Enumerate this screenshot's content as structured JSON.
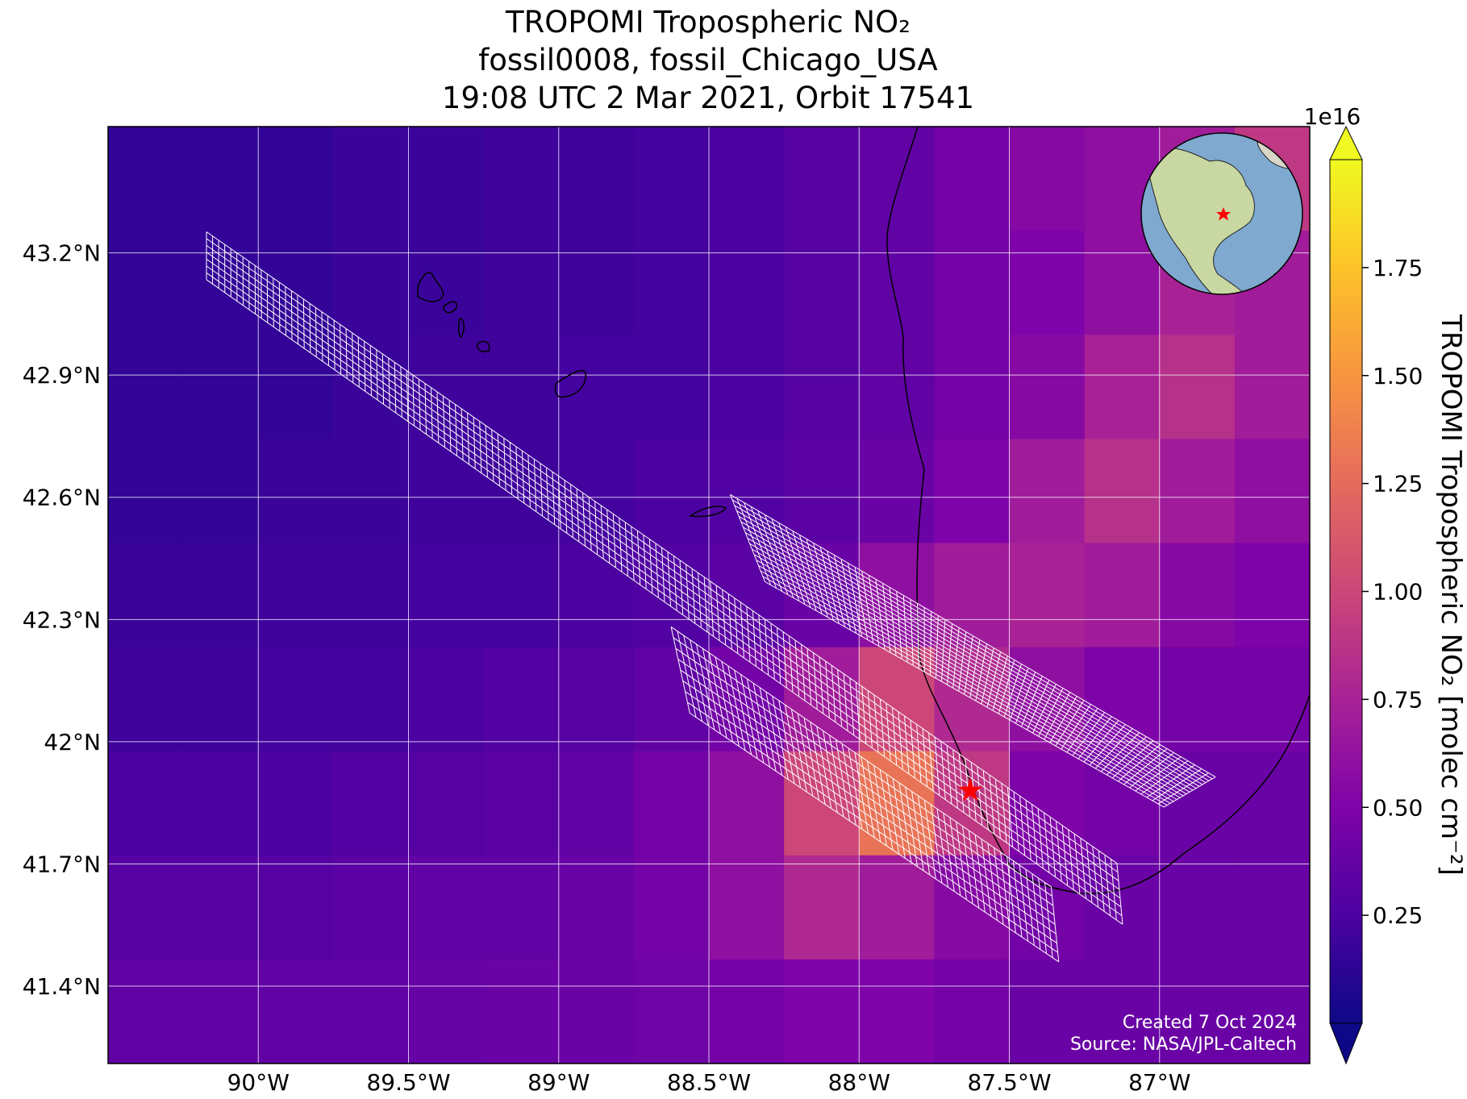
{
  "chart_data": {
    "type": "map_raster",
    "title": [
      "TROPOMI Tropospheric NO₂",
      "fossil0008, fossil_Chicago_USA",
      "19:08 UTC 2 Mar 2021, Orbit 17541"
    ],
    "xlim": [
      -90.5,
      -86.5
    ],
    "ylim": [
      41.21,
      43.51
    ],
    "xticks": [
      {
        "value": -90,
        "label": "90°W"
      },
      {
        "value": -89.5,
        "label": "89.5°W"
      },
      {
        "value": -89,
        "label": "89°W"
      },
      {
        "value": -88.5,
        "label": "88.5°W"
      },
      {
        "value": -88,
        "label": "88°W"
      },
      {
        "value": -87.5,
        "label": "87.5°W"
      },
      {
        "value": -87,
        "label": "87°W"
      }
    ],
    "yticks": [
      {
        "value": 43.2,
        "label": "43.2°N"
      },
      {
        "value": 42.9,
        "label": "42.9°N"
      },
      {
        "value": 42.6,
        "label": "42.6°N"
      },
      {
        "value": 42.3,
        "label": "42.3°N"
      },
      {
        "value": 42,
        "label": "42°N"
      },
      {
        "value": 41.7,
        "label": "41.7°N"
      },
      {
        "value": 41.4,
        "label": "41.4°N"
      }
    ],
    "grid": true,
    "colormap": "plasma",
    "colorbar": {
      "label": "TROPOMI Tropospheric NO₂ [molec cm⁻²]",
      "offset_label": "1e16",
      "lim": [
        0,
        2.0
      ],
      "ticks": [
        0.25,
        {
          "value": 0.5,
          "label": "0.50"
        },
        0.75,
        {
          "value": 1.0,
          "label": "1.00"
        },
        1.25,
        {
          "value": 1.5,
          "label": "1.50"
        },
        1.75
      ],
      "extend": "both"
    },
    "raster": [
      [
        0.15,
        0.15,
        0.15,
        0.18,
        0.18,
        0.2,
        0.2,
        0.22,
        0.25,
        0.3,
        0.35,
        0.45,
        0.55,
        0.6,
        0.7,
        0.9
      ],
      [
        0.15,
        0.15,
        0.15,
        0.18,
        0.18,
        0.2,
        0.2,
        0.22,
        0.25,
        0.3,
        0.35,
        0.45,
        0.5,
        0.6,
        0.75,
        0.7
      ],
      [
        0.15,
        0.15,
        0.15,
        0.18,
        0.2,
        0.2,
        0.22,
        0.22,
        0.25,
        0.3,
        0.35,
        0.45,
        0.55,
        0.75,
        0.85,
        0.7
      ],
      [
        0.15,
        0.15,
        0.18,
        0.18,
        0.2,
        0.2,
        0.22,
        0.25,
        0.28,
        0.32,
        0.4,
        0.5,
        0.7,
        0.85,
        0.7,
        0.6
      ],
      [
        0.18,
        0.18,
        0.2,
        0.2,
        0.22,
        0.22,
        0.25,
        0.28,
        0.32,
        0.4,
        0.6,
        0.7,
        0.75,
        0.7,
        0.55,
        0.5
      ],
      [
        0.2,
        0.2,
        0.22,
        0.22,
        0.25,
        0.28,
        0.3,
        0.35,
        0.45,
        0.7,
        1.0,
        0.8,
        0.6,
        0.5,
        0.45,
        0.45
      ],
      [
        0.25,
        0.25,
        0.25,
        0.28,
        0.3,
        0.32,
        0.35,
        0.45,
        0.6,
        1.0,
        1.3,
        0.9,
        0.5,
        0.45,
        0.4,
        0.4
      ],
      [
        0.3,
        0.3,
        0.3,
        0.32,
        0.35,
        0.35,
        0.4,
        0.45,
        0.6,
        0.8,
        0.7,
        0.55,
        0.45,
        0.4,
        0.4,
        0.4
      ],
      [
        0.35,
        0.35,
        0.35,
        0.35,
        0.38,
        0.4,
        0.4,
        0.42,
        0.45,
        0.5,
        0.5,
        0.45,
        0.4,
        0.4,
        0.4,
        0.4
      ]
    ],
    "site": {
      "lon": -87.63,
      "lat": 41.88,
      "color": "#ff0000"
    },
    "footer": [
      "Created 7 Oct 2024",
      "Source: NASA/JPL-Caltech"
    ]
  }
}
